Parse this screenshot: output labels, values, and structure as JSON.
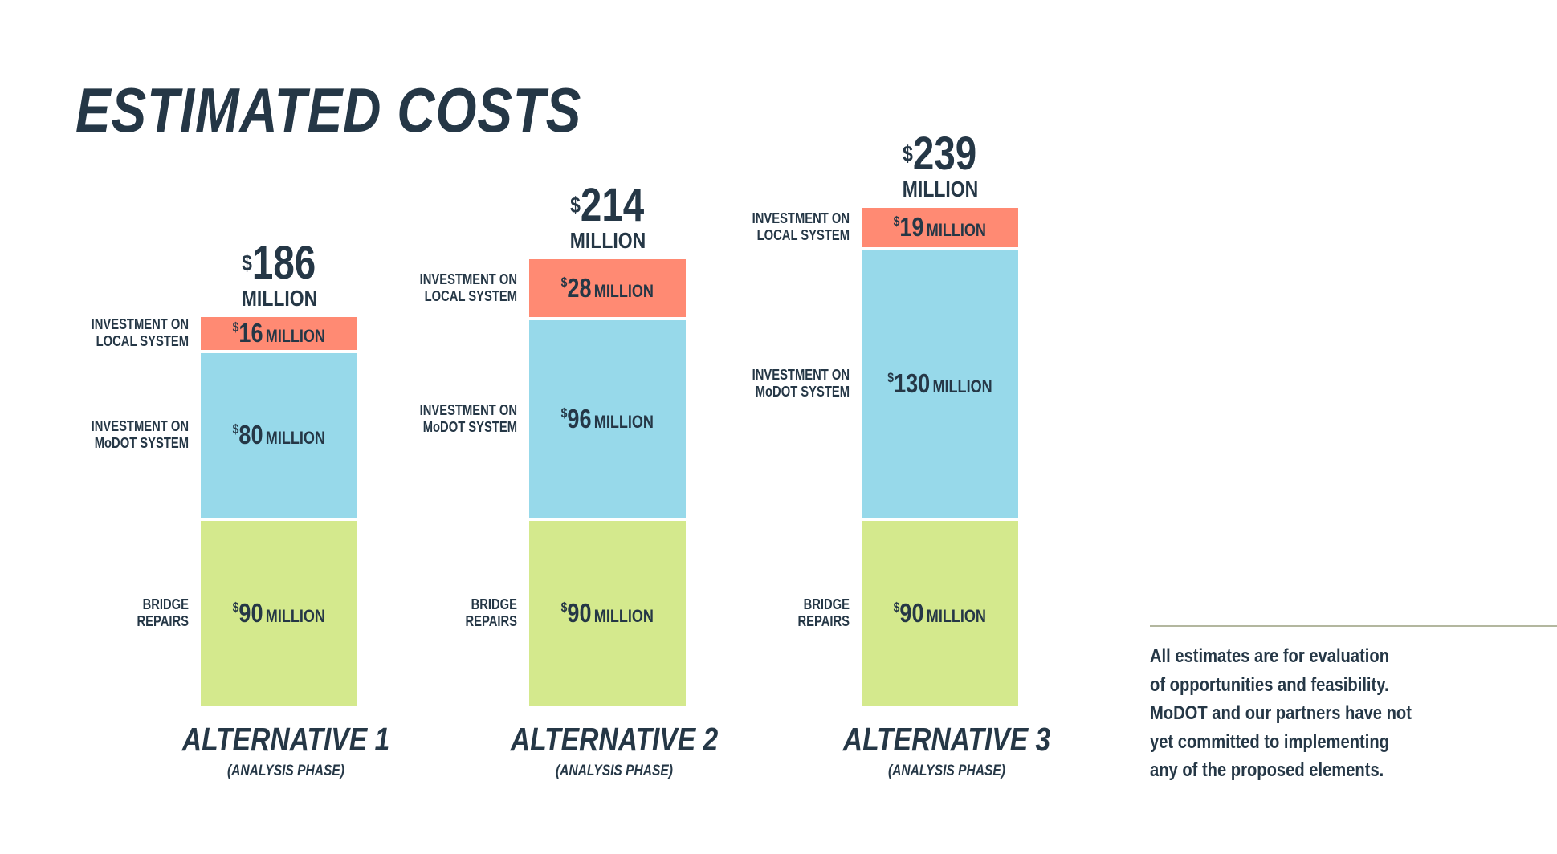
{
  "title": "ESTIMATED COSTS",
  "note": [
    "All estimates are for evaluation",
    "of opportunities and feasibility.",
    "MoDOT and our partners have not",
    "yet committed to implementing",
    "any of the proposed elements."
  ],
  "unit_label": "MILLION",
  "currency": "$",
  "colors": {
    "text": "#253746",
    "local": "#ff8a73",
    "modot": "#97d9ea",
    "bridge": "#d4e98d",
    "rule": "#b3b79f"
  },
  "chart_data": {
    "type": "bar",
    "stacked": true,
    "title": "ESTIMATED COSTS",
    "categories": [
      "ALTERNATIVE 1",
      "ALTERNATIVE 2",
      "ALTERNATIVE 3"
    ],
    "category_subtitles": [
      "(ANALYSIS PHASE)",
      "(ANALYSIS PHASE)",
      "(ANALYSIS PHASE)"
    ],
    "totals": [
      186,
      214,
      239
    ],
    "series": [
      {
        "name": "BRIDGE REPAIRS",
        "name_lines": [
          "BRIDGE",
          "REPAIRS"
        ],
        "color": "#d4e98d",
        "values": [
          90,
          90,
          90
        ]
      },
      {
        "name": "INVESTMENT ON MoDOT SYSTEM",
        "name_lines": [
          "INVESTMENT ON",
          "MoDOT SYSTEM"
        ],
        "color": "#97d9ea",
        "values": [
          80,
          96,
          130
        ]
      },
      {
        "name": "INVESTMENT ON LOCAL SYSTEM",
        "name_lines": [
          "INVESTMENT ON",
          "LOCAL SYSTEM"
        ],
        "color": "#ff8a73",
        "values": [
          16,
          28,
          19
        ]
      }
    ],
    "units": "$ MILLION",
    "grid": false,
    "axes": false
  }
}
